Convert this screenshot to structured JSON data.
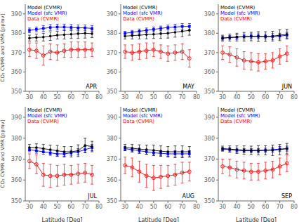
{
  "chart_data": [
    {
      "type": "line",
      "annotation": "APR",
      "x": [
        30,
        35,
        40,
        45,
        50,
        55,
        60,
        65,
        70,
        75
      ],
      "xlim": [
        27,
        80
      ],
      "xticks": [
        30,
        40,
        50,
        60,
        70,
        80
      ],
      "ylim": [
        350,
        395
      ],
      "yticks": [
        350,
        360,
        370,
        380,
        390
      ],
      "grid": false,
      "y_label": "CO₂ CVMR and VMR [ppmv]",
      "series": [
        {
          "name": "Model (CVMR)",
          "color": "black",
          "marker": "circle",
          "values": [
            377.5,
            377.8,
            378.0,
            378.5,
            379.0,
            379.2,
            379.5,
            379.8,
            380.0,
            379.8
          ],
          "errors": [
            1.5,
            1.8,
            2.0,
            2.2,
            2.0,
            2.2,
            2.2,
            2.5,
            2.5,
            2.0
          ]
        },
        {
          "name": "Model (sfc VMR)",
          "color": "blue",
          "marker": "square",
          "values": [
            381.5,
            382.0,
            382.5,
            383.0,
            383.2,
            383.2,
            383.0,
            382.8,
            382.8,
            382.5
          ],
          "errors": [
            1.2,
            1.2,
            1.5,
            1.5,
            1.5,
            1.5,
            1.5,
            1.5,
            1.5,
            1.5
          ]
        },
        {
          "name": "Data (CVMR)",
          "color": "red",
          "marker": "open_circle",
          "values": [
            371.5,
            371.0,
            368.5,
            370.5,
            370.0,
            371.0,
            371.5,
            371.5,
            371.5,
            371.5
          ],
          "errors": [
            3.5,
            4.0,
            5.0,
            4.0,
            4.0,
            3.5,
            4.0,
            4.0,
            4.0,
            3.5
          ]
        }
      ]
    },
    {
      "type": "line",
      "annotation": "MAY",
      "x": [
        30,
        35,
        40,
        45,
        50,
        55,
        60,
        65,
        70,
        75
      ],
      "xlim": [
        27,
        80
      ],
      "xticks": [
        30,
        40,
        50,
        60,
        70,
        80
      ],
      "ylim": [
        350,
        395
      ],
      "yticks": [
        350,
        360,
        370,
        380,
        390
      ],
      "grid": false,
      "series": [
        {
          "name": "Model (CVMR)",
          "color": "black",
          "marker": "circle",
          "values": [
            378.5,
            378.8,
            379.0,
            379.3,
            379.5,
            379.8,
            380.0,
            380.5,
            381.0,
            381.5
          ],
          "errors": [
            1.5,
            1.8,
            2.0,
            2.2,
            2.2,
            2.5,
            2.5,
            2.5,
            2.8,
            2.5
          ]
        },
        {
          "name": "Model (sfc VMR)",
          "color": "blue",
          "marker": "square",
          "values": [
            380.0,
            380.5,
            381.0,
            381.5,
            382.0,
            382.5,
            383.0,
            383.2,
            383.5,
            383.5
          ],
          "errors": [
            1.0,
            1.0,
            1.2,
            1.2,
            1.2,
            1.2,
            1.2,
            1.5,
            1.5,
            1.5
          ]
        },
        {
          "name": "Data (CVMR)",
          "color": "red",
          "marker": "open_circle",
          "values": [
            370.5,
            370.0,
            370.5,
            371.0,
            371.5,
            370.5,
            369.5,
            370.0,
            370.5,
            367.0
          ],
          "errors": [
            3.5,
            4.0,
            4.0,
            4.0,
            3.5,
            3.5,
            4.0,
            4.0,
            4.0,
            4.5
          ]
        }
      ]
    },
    {
      "type": "line",
      "annotation": "JUN",
      "x": [
        30,
        35,
        40,
        45,
        50,
        55,
        60,
        65,
        70,
        75
      ],
      "xlim": [
        27,
        80
      ],
      "xticks": [
        30,
        40,
        50,
        60,
        70,
        80
      ],
      "ylim": [
        350,
        395
      ],
      "yticks": [
        350,
        360,
        370,
        380,
        390
      ],
      "grid": false,
      "series": [
        {
          "name": "Model (CVMR)",
          "color": "black",
          "marker": "circle",
          "values": [
            377.5,
            377.8,
            378.0,
            378.2,
            378.3,
            378.3,
            378.3,
            378.5,
            379.0,
            379.5
          ],
          "errors": [
            1.5,
            1.8,
            2.0,
            2.2,
            2.2,
            2.5,
            2.5,
            2.5,
            2.8,
            2.5
          ]
        },
        {
          "name": "Model (sfc VMR)",
          "color": "blue",
          "marker": "square",
          "values": [
            377.5,
            377.8,
            378.0,
            378.3,
            378.5,
            378.5,
            378.3,
            378.3,
            378.5,
            379.0
          ],
          "errors": [
            1.0,
            1.0,
            1.2,
            1.2,
            1.2,
            1.2,
            1.2,
            1.5,
            1.5,
            1.5
          ]
        },
        {
          "name": "Data (CVMR)",
          "color": "red",
          "marker": "open_circle",
          "values": [
            370.0,
            369.0,
            367.5,
            366.0,
            365.5,
            365.0,
            365.5,
            366.0,
            368.0,
            369.5
          ],
          "errors": [
            3.5,
            4.0,
            4.5,
            4.5,
            4.5,
            4.5,
            4.0,
            4.0,
            4.0,
            4.0
          ]
        }
      ]
    },
    {
      "type": "line",
      "annotation": "JUL",
      "x": [
        30,
        35,
        40,
        45,
        50,
        55,
        60,
        65,
        70,
        75
      ],
      "xlim": [
        27,
        80
      ],
      "xticks": [
        30,
        40,
        50,
        60,
        70,
        80
      ],
      "ylim": [
        350,
        395
      ],
      "yticks": [
        350,
        360,
        370,
        380,
        390
      ],
      "grid": false,
      "y_label": "CO₂ CVMR and VMR [ppmv]",
      "x_label": "Latitude [Deg]",
      "series": [
        {
          "name": "Model (CVMR)",
          "color": "black",
          "marker": "circle",
          "values": [
            375.5,
            375.5,
            375.0,
            374.5,
            374.0,
            373.5,
            373.5,
            374.0,
            376.5,
            376.0
          ],
          "errors": [
            1.5,
            1.8,
            2.0,
            2.2,
            2.5,
            2.5,
            2.5,
            2.8,
            3.5,
            2.5
          ]
        },
        {
          "name": "Model (sfc VMR)",
          "color": "blue",
          "marker": "square",
          "values": [
            374.5,
            374.0,
            373.5,
            373.0,
            372.5,
            372.5,
            373.0,
            373.5,
            374.5,
            375.5
          ],
          "errors": [
            1.0,
            1.2,
            1.2,
            1.2,
            1.2,
            1.2,
            1.2,
            1.5,
            1.5,
            1.5
          ]
        },
        {
          "name": "Data (CVMR)",
          "color": "red",
          "marker": "open_circle",
          "values": [
            369.0,
            367.5,
            362.5,
            362.0,
            362.0,
            362.5,
            362.5,
            363.0,
            363.5,
            362.5
          ],
          "errors": [
            3.5,
            4.5,
            5.5,
            5.5,
            5.0,
            5.0,
            4.5,
            4.5,
            4.5,
            4.5
          ]
        }
      ]
    },
    {
      "type": "line",
      "annotation": "AUG",
      "x": [
        30,
        35,
        40,
        45,
        50,
        55,
        60,
        65,
        70,
        75
      ],
      "xlim": [
        27,
        80
      ],
      "xticks": [
        30,
        40,
        50,
        60,
        70,
        80
      ],
      "ylim": [
        350,
        395
      ],
      "yticks": [
        350,
        360,
        370,
        380,
        390
      ],
      "grid": false,
      "x_label": "Latitude [Deg]",
      "series": [
        {
          "name": "Model (CVMR)",
          "color": "black",
          "marker": "circle",
          "values": [
            375.5,
            375.2,
            374.8,
            374.5,
            374.2,
            373.8,
            373.5,
            373.5,
            373.5,
            373.5
          ],
          "errors": [
            1.5,
            1.8,
            2.0,
            2.2,
            2.5,
            2.5,
            2.5,
            2.8,
            2.8,
            2.5
          ]
        },
        {
          "name": "Model (sfc VMR)",
          "color": "blue",
          "marker": "square",
          "values": [
            375.0,
            374.5,
            374.0,
            373.5,
            373.0,
            372.8,
            372.5,
            372.5,
            372.5,
            372.5
          ],
          "errors": [
            1.0,
            1.0,
            1.2,
            1.2,
            1.2,
            1.2,
            1.2,
            1.5,
            1.5,
            1.5
          ]
        },
        {
          "name": "Data (CVMR)",
          "color": "red",
          "marker": "open_circle",
          "values": [
            367.0,
            366.0,
            364.0,
            362.0,
            361.0,
            361.5,
            362.0,
            362.5,
            363.5,
            364.0
          ],
          "errors": [
            4.0,
            4.5,
            5.0,
            5.5,
            6.0,
            5.5,
            5.0,
            5.0,
            5.0,
            4.5
          ]
        }
      ]
    },
    {
      "type": "line",
      "annotation": "SEP",
      "x": [
        30,
        35,
        40,
        45,
        50,
        55,
        60,
        65,
        70,
        75
      ],
      "xlim": [
        27,
        80
      ],
      "xticks": [
        30,
        40,
        50,
        60,
        70,
        80
      ],
      "ylim": [
        350,
        395
      ],
      "yticks": [
        350,
        360,
        370,
        380,
        390
      ],
      "grid": false,
      "x_label": "Latitude [Deg]",
      "series": [
        {
          "name": "Model (CVMR)",
          "color": "black",
          "marker": "circle",
          "values": [
            375.0,
            374.8,
            374.5,
            374.3,
            374.2,
            374.2,
            374.2,
            374.2,
            374.5,
            375.0
          ],
          "errors": [
            1.2,
            1.5,
            1.8,
            2.0,
            2.0,
            2.2,
            2.2,
            2.5,
            2.5,
            2.5
          ]
        },
        {
          "name": "Model (sfc VMR)",
          "color": "blue",
          "marker": "square",
          "values": [
            374.8,
            374.5,
            374.2,
            374.0,
            374.0,
            374.0,
            374.2,
            374.5,
            374.8,
            375.0
          ],
          "errors": [
            0.8,
            1.0,
            1.0,
            1.0,
            1.0,
            1.0,
            1.0,
            1.2,
            1.2,
            1.2
          ]
        },
        {
          "name": "Data (CVMR)",
          "color": "red",
          "marker": "open_circle",
          "values": [
            366.5,
            366.0,
            365.0,
            364.5,
            364.0,
            364.0,
            364.5,
            365.0,
            366.5,
            368.0
          ],
          "errors": [
            3.5,
            4.0,
            4.0,
            4.0,
            4.0,
            4.0,
            4.0,
            4.0,
            4.0,
            4.0
          ]
        }
      ]
    }
  ]
}
